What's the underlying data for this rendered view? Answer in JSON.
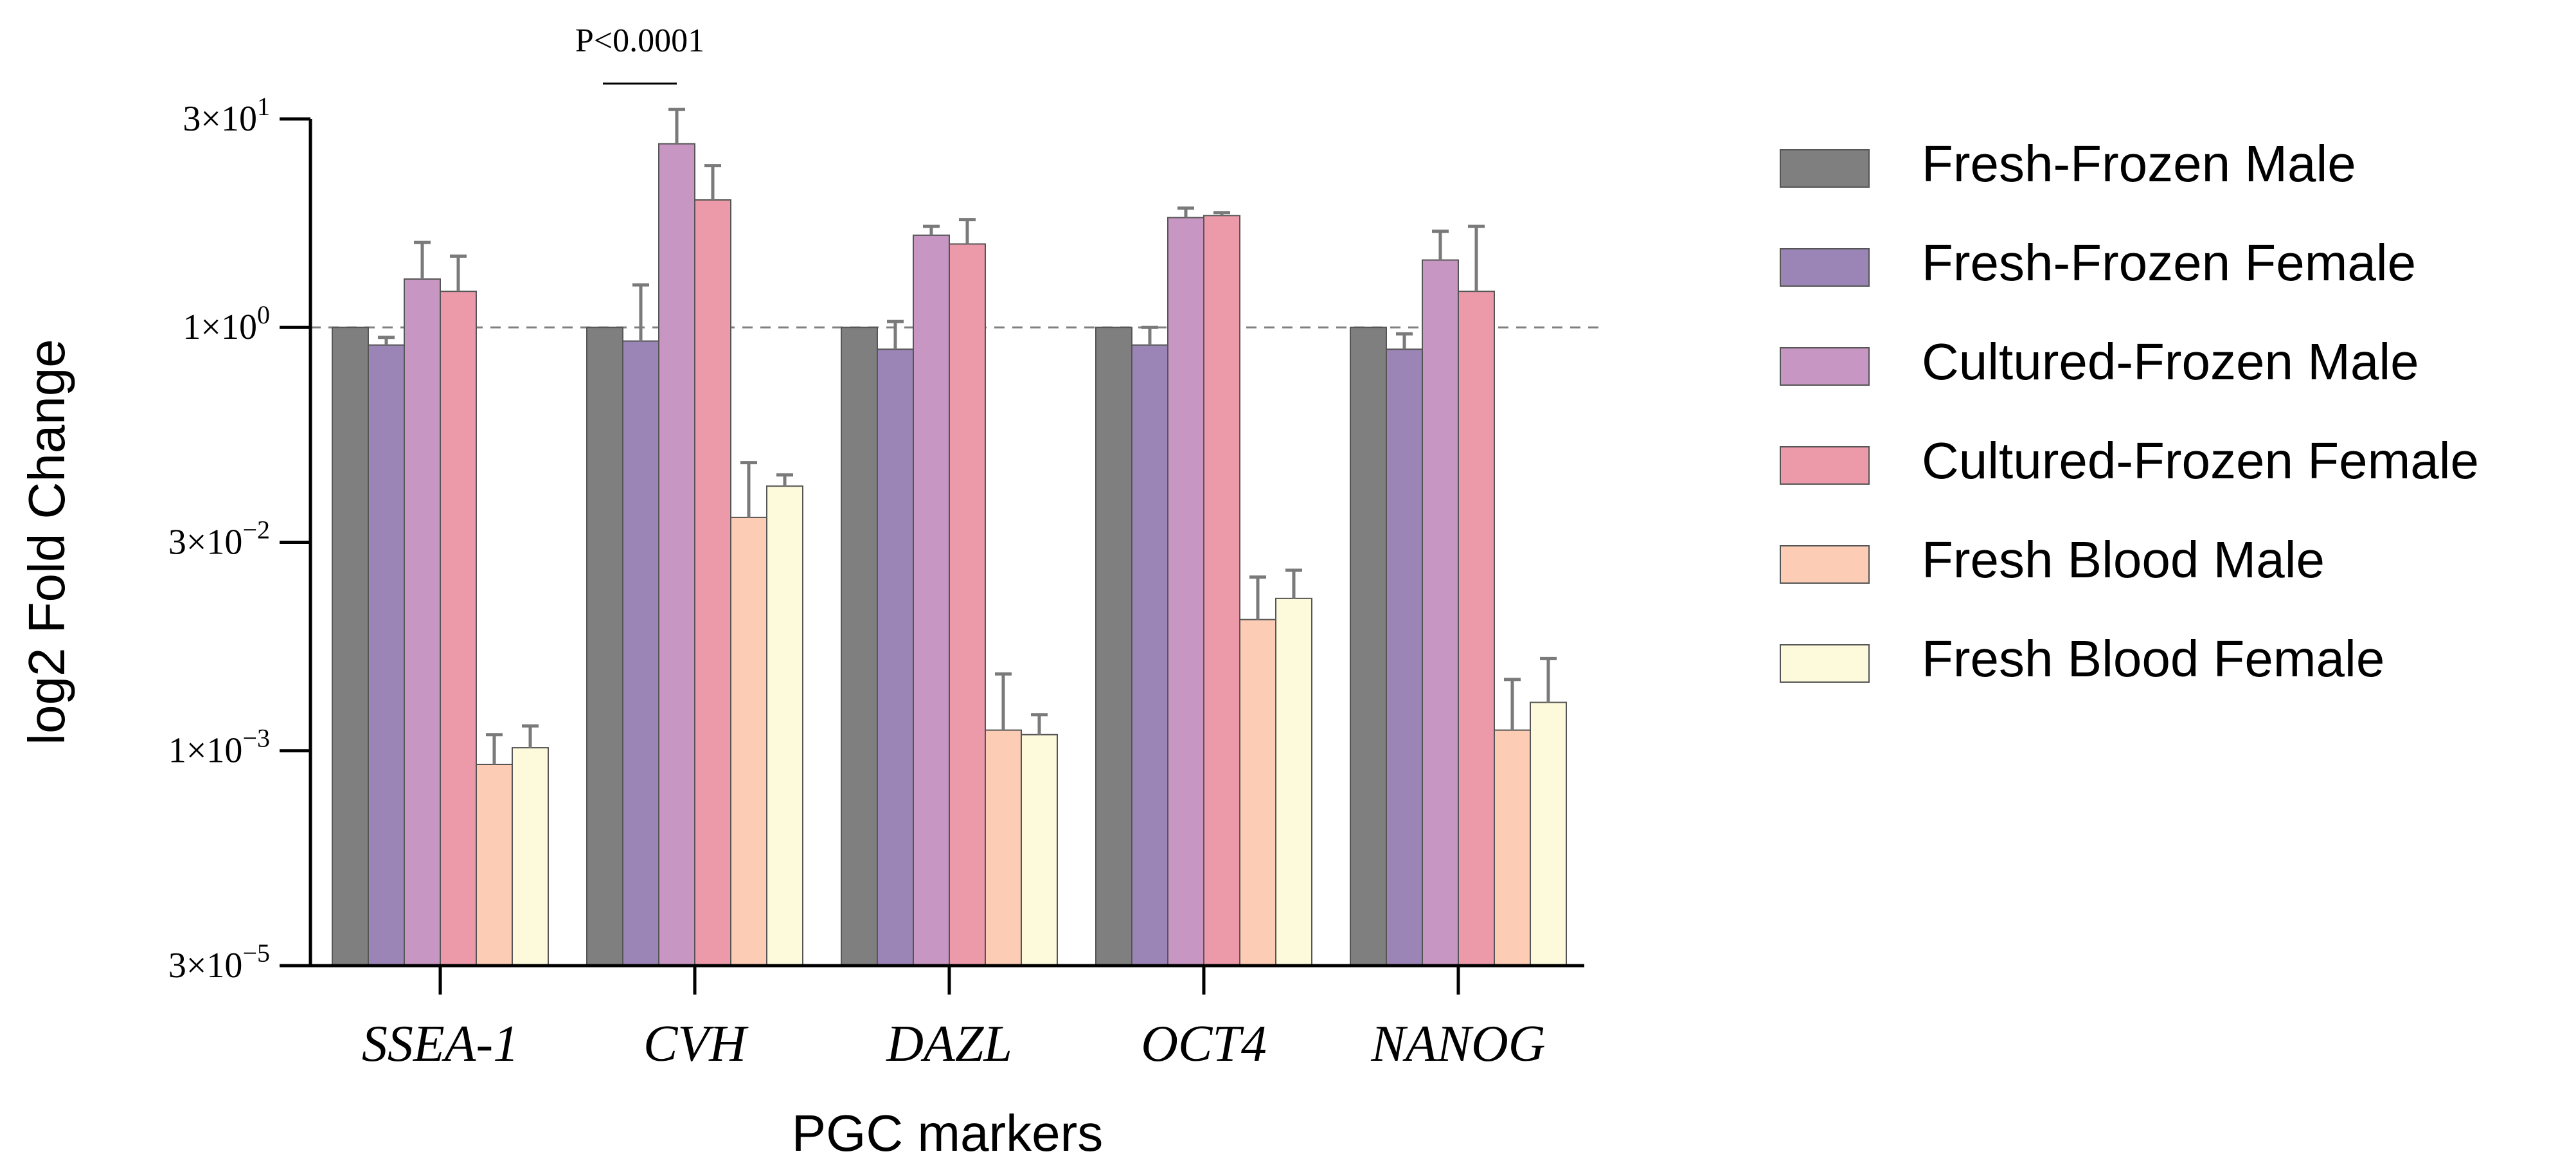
{
  "chart_data": {
    "type": "bar",
    "title": "",
    "xlabel": "PGC markers",
    "ylabel": "log2 Fold Change",
    "y_scale": "log",
    "ylim": [
      3e-05,
      30
    ],
    "y_ticks": [
      {
        "value": 3e-05,
        "base": "3×10",
        "exp": "−5"
      },
      {
        "value": 0.001,
        "base": "1×10",
        "exp": "−3"
      },
      {
        "value": 0.03,
        "base": "3×10",
        "exp": "−2"
      },
      {
        "value": 1,
        "base": "1×10",
        "exp": "0"
      },
      {
        "value": 30,
        "base": "3×10",
        "exp": "1"
      }
    ],
    "reference_line": {
      "value": 1,
      "style": "dashed"
    },
    "categories": [
      "SSEA-1",
      "CVH",
      "DAZL",
      "OCT4",
      "NANOG"
    ],
    "series": [
      {
        "name": "Fresh-Frozen Male",
        "color": "#7f7f7f",
        "values": [
          1.0,
          1.0,
          1.0,
          1.0,
          1.0
        ],
        "errors": [
          null,
          null,
          null,
          null,
          null
        ]
      },
      {
        "name": "Fresh-Frozen Female",
        "color": "#9b84b6",
        "values": [
          0.75,
          0.8,
          0.7,
          0.75,
          0.7
        ],
        "errors": [
          0.85,
          2.0,
          1.1,
          1.0,
          0.9
        ]
      },
      {
        "name": "Cultured-Frozen Male",
        "color": "#c796c2",
        "values": [
          2.2,
          20.0,
          4.5,
          6.0,
          3.0
        ],
        "errors": [
          4.0,
          35.0,
          5.2,
          7.0,
          4.8
        ]
      },
      {
        "name": "Cultured-Frozen Female",
        "color": "#ec9aaa",
        "values": [
          1.8,
          8.0,
          3.9,
          6.2,
          1.8
        ],
        "errors": [
          3.2,
          14.0,
          5.8,
          6.5,
          5.2
        ]
      },
      {
        "name": "Fresh Blood Male",
        "color": "#fcccb4",
        "values": [
          0.0008,
          0.045,
          0.0014,
          0.0085,
          0.0014
        ],
        "errors": [
          0.0013,
          0.11,
          0.0035,
          0.017,
          0.0032
        ]
      },
      {
        "name": "Fresh Blood Female",
        "color": "#fdfadc",
        "values": [
          0.00105,
          0.075,
          0.0013,
          0.012,
          0.0022
        ],
        "errors": [
          0.0015,
          0.09,
          0.0018,
          0.019,
          0.0045
        ]
      }
    ],
    "annotations": [
      {
        "text": "P<0.0001",
        "category": "CVH"
      }
    ],
    "legend_position": "right",
    "grid": false
  }
}
